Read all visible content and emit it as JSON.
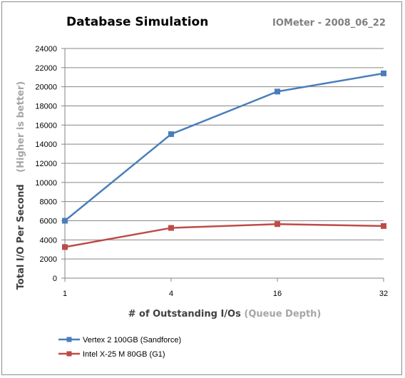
{
  "chart_data": {
    "type": "line",
    "title": "Database  Simulation",
    "subtitle": "IOMeter - 2008_06_22",
    "categories": [
      "1",
      "4",
      "16",
      "32"
    ],
    "xlabel_main": "# of Outstanding I/Os",
    "xlabel_note": "(Queue Depth)",
    "ylabel_main": "Total I/O Per Second",
    "ylabel_note": "(Higher is better)",
    "ylim": [
      0,
      24000
    ],
    "ytick_step": 2000,
    "grid": true,
    "legend_position": "bottom-left",
    "series": [
      {
        "name": "Vertex 2 100GB (Sandforce)",
        "color": "#4a7ebb",
        "values": [
          6000,
          15050,
          19500,
          21400
        ]
      },
      {
        "name": "Intel X-25 M 80GB (G1)",
        "color": "#be4b48",
        "values": [
          3250,
          5250,
          5650,
          5450
        ]
      }
    ]
  }
}
